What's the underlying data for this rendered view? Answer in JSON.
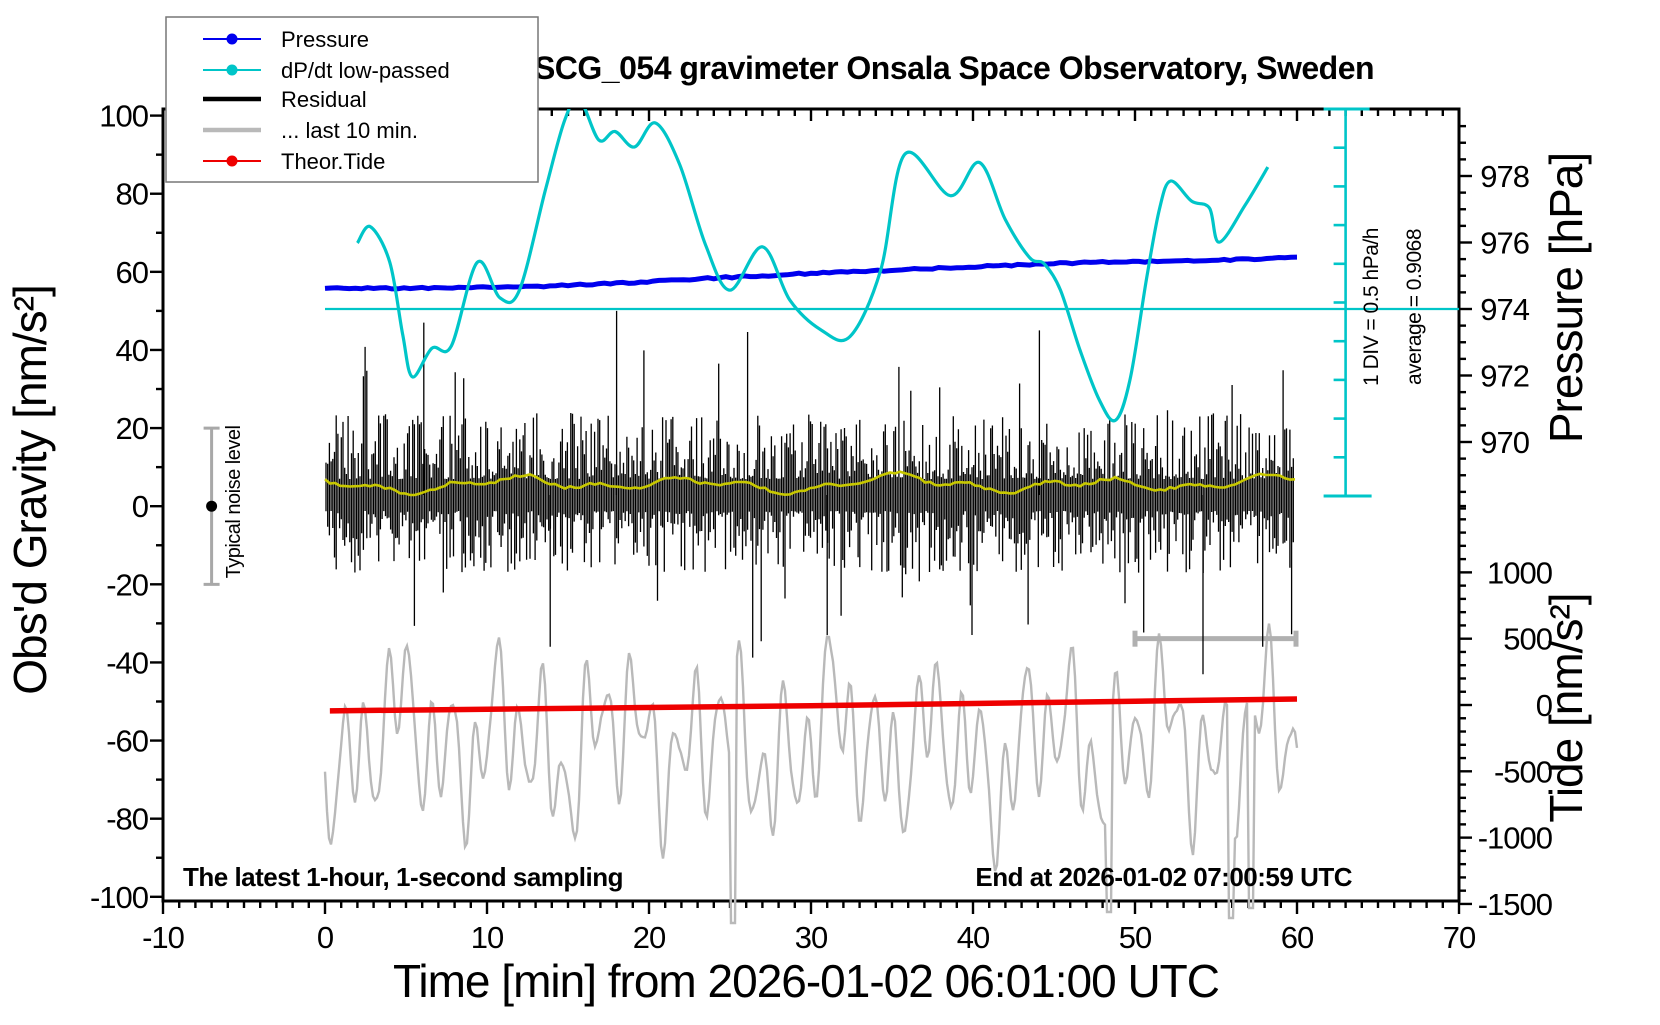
{
  "title": "SCG_054 gravimeter Onsala Space Observatory, Sweden",
  "legend": {
    "items": [
      {
        "label": "Pressure",
        "color": "#0000EE",
        "style": "line-dot"
      },
      {
        "label": "dP/dt low-passed",
        "color": "#00C5C8",
        "style": "line-dot"
      },
      {
        "label": "Residual",
        "color": "#000000",
        "style": "thick-line"
      },
      {
        "label": "... last 10 min.",
        "color": "#B9B9B9",
        "style": "thick-line"
      },
      {
        "label": "Theor.Tide",
        "color": "#EE0000",
        "style": "line-dot"
      }
    ]
  },
  "axes": {
    "x": {
      "label": "Time [min] from 2026-01-02 06:01:00 UTC",
      "min": -10,
      "max": 70,
      "major_ticks": [
        -10,
        0,
        10,
        20,
        30,
        40,
        50,
        60,
        70
      ],
      "minor_step": 1
    },
    "gravity": {
      "label": "Obs'd Gravity [nm/s²]",
      "min": -100,
      "max": 100,
      "major_ticks": [
        100,
        80,
        60,
        40,
        20,
        0,
        -20,
        -40,
        -60,
        -80,
        -100
      ],
      "minor_step": 10
    },
    "pressure": {
      "label": "Pressure [hPa]",
      "top_value": 980,
      "bottom_value": 968,
      "major_ticks": [
        978,
        976,
        974,
        972,
        970
      ],
      "minor_step": 0.5
    },
    "tide": {
      "label": "Tide [nm/s²]",
      "top_value": 1500,
      "bottom_value": -1500,
      "major_ticks": [
        1000,
        500,
        0,
        -500,
        -1000,
        -1500
      ],
      "minor_step": 100
    }
  },
  "annotations": {
    "sampling": "The latest 1-hour, 1-second sampling",
    "end": "End at 2026-01-02 07:00:59 UTC",
    "div_scale": "1 DIV = 0.5 hPa/h",
    "average": "average = 0.9068",
    "noise": "Typical noise level"
  },
  "chart_data": {
    "type": "line",
    "title": "SCG_054 gravimeter Onsala Space Observatory, Sweden",
    "xlabel": "Time [min] from 2026-01-02 06:01:00 UTC",
    "x_range": [
      -10,
      70
    ],
    "gravity_range": [
      -100,
      100
    ],
    "pressure_range": [
      968,
      980
    ],
    "tide_range": [
      -1500,
      1500
    ],
    "dpdt_ruler": {
      "t_position": 63,
      "divisions": 10,
      "div_value_hpa_per_h": 0.5,
      "average_hpa_per_h": 0.9068,
      "average_line_pressure_level": 974.0
    },
    "noise_marker": {
      "t": -7,
      "gravity_center": 0,
      "gravity_half_range": 20
    },
    "series": [
      {
        "name": "Pressure",
        "axis": "pressure",
        "unit": "hPa",
        "color": "#0000EE",
        "points": [
          [
            0,
            974.62
          ],
          [
            3,
            974.62
          ],
          [
            6,
            974.63
          ],
          [
            9,
            974.65
          ],
          [
            12,
            974.67
          ],
          [
            15,
            974.71
          ],
          [
            18,
            974.77
          ],
          [
            21,
            974.85
          ],
          [
            24,
            974.93
          ],
          [
            27,
            975.0
          ],
          [
            30,
            975.07
          ],
          [
            33,
            975.13
          ],
          [
            36,
            975.19
          ],
          [
            39,
            975.25
          ],
          [
            42,
            975.31
          ],
          [
            45,
            975.37
          ],
          [
            48,
            975.41
          ],
          [
            51,
            975.43
          ],
          [
            54,
            975.45
          ],
          [
            57,
            975.5
          ],
          [
            60,
            975.56
          ]
        ]
      },
      {
        "name": "dP/dt low-passed",
        "axis": "dpdt",
        "unit": "hPa/h",
        "color": "#00C5C8",
        "average": 0.9068,
        "points": [
          [
            2.0,
            1.76
          ],
          [
            2.8,
            1.97
          ],
          [
            4.0,
            1.51
          ],
          [
            4.8,
            0.57
          ],
          [
            5.4,
            0.03
          ],
          [
            6.6,
            0.4
          ],
          [
            7.8,
            0.43
          ],
          [
            9.4,
            1.51
          ],
          [
            10.8,
            1.05
          ],
          [
            12.0,
            1.15
          ],
          [
            13.6,
            2.44
          ],
          [
            14.8,
            3.35
          ],
          [
            15.7,
            3.62
          ],
          [
            16.9,
            3.09
          ],
          [
            17.9,
            3.2
          ],
          [
            19.1,
            3.0
          ],
          [
            20.4,
            3.31
          ],
          [
            21.9,
            2.77
          ],
          [
            23.5,
            1.73
          ],
          [
            25.0,
            1.15
          ],
          [
            27.0,
            1.71
          ],
          [
            28.7,
            1.02
          ],
          [
            30.6,
            0.64
          ],
          [
            32.4,
            0.55
          ],
          [
            34.3,
            1.41
          ],
          [
            35.8,
            2.91
          ],
          [
            38.6,
            2.37
          ],
          [
            40.4,
            2.8
          ],
          [
            42.0,
            2.06
          ],
          [
            43.5,
            1.57
          ],
          [
            44.4,
            1.49
          ],
          [
            45.4,
            1.15
          ],
          [
            46.6,
            0.38
          ],
          [
            47.8,
            -0.27
          ],
          [
            48.8,
            -0.53
          ],
          [
            49.7,
            0.0
          ],
          [
            50.7,
            1.28
          ],
          [
            51.5,
            2.19
          ],
          [
            52.2,
            2.56
          ],
          [
            53.5,
            2.3
          ],
          [
            54.6,
            2.21
          ],
          [
            55.2,
            1.77
          ],
          [
            56.8,
            2.25
          ],
          [
            58.2,
            2.74
          ]
        ]
      },
      {
        "name": "Residual",
        "axis": "gravity",
        "unit": "nm/s²",
        "color": "#000000",
        "description": "1 Hz broadband noise around 0, dense band about ±25, spikes to ±45",
        "t_span": [
          0,
          60
        ],
        "spikes": [
          [
            6.1,
            47
          ],
          [
            13.9,
            -36
          ],
          [
            18.0,
            50
          ],
          [
            31.0,
            -33
          ],
          [
            44.1,
            45
          ],
          [
            54.2,
            -43
          ]
        ]
      },
      {
        "name": "Residual low-passed",
        "axis": "gravity",
        "unit": "nm/s²",
        "color": "#C8C800",
        "description": "slow yellow curve near +5 nm/s² across full hour",
        "t_span": [
          0,
          60
        ],
        "mean": 5
      },
      {
        "name": "... last 10 min.",
        "axis": "tide",
        "unit": "nm/s²",
        "color": "#B9B9B9",
        "description": "last 10 minutes of residual stretched over the hour, oscillating roughly -1100..500 about -300",
        "t_span": [
          0,
          60
        ],
        "window_bar": {
          "t_start": 50,
          "t_end": 60,
          "tide_level": 500
        },
        "deep_spikes_t": [
          25.2,
          48.4,
          55.9,
          57.1
        ]
      },
      {
        "name": "Theor.Tide",
        "axis": "tide",
        "unit": "nm/s²",
        "color": "#EE0000",
        "points": [
          [
            0.3,
            -44
          ],
          [
            10,
            -32
          ],
          [
            20,
            -19
          ],
          [
            30,
            -5
          ],
          [
            40,
            11
          ],
          [
            50,
            28
          ],
          [
            60,
            45
          ]
        ]
      }
    ]
  }
}
